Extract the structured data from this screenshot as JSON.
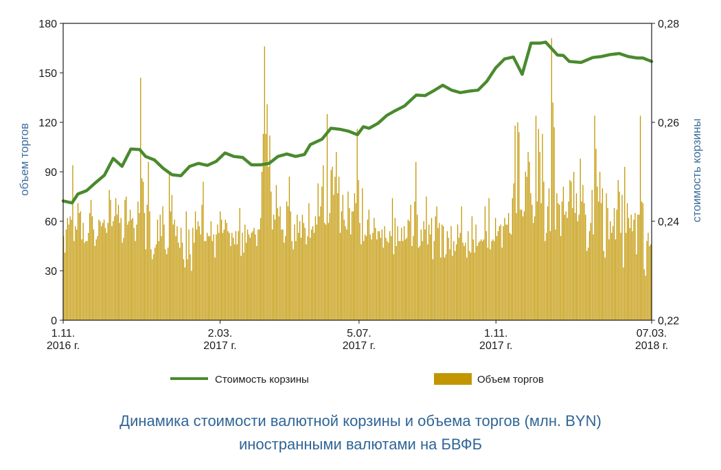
{
  "caption": {
    "line1": "Динамика стоимости валютной корзины и объема торгов (млн. BYN)",
    "line2": "иностранными валютами на БВФБ"
  },
  "colors": {
    "line": "#4a8a2e",
    "bars": "#c29600",
    "axis": "#1a1a1a",
    "title": "#2f6597"
  },
  "chart_data": {
    "type": "bar+line",
    "left_axis": {
      "label": "объем торгов",
      "ylim": [
        0,
        180
      ],
      "ticks": [
        "0",
        "30",
        "60",
        "90",
        "120",
        "150",
        "180"
      ]
    },
    "right_axis": {
      "label": "стоимость корзины",
      "ylim": [
        0.22,
        0.28
      ],
      "ticks": [
        "0,22",
        "0,24",
        "0,26",
        "0,28"
      ]
    },
    "x_ticks": [
      {
        "line1": "1.11.",
        "line2": "2016 г.",
        "pos": 0.0
      },
      {
        "line1": "2.03.",
        "line2": "2017 г.",
        "pos": 0.2666
      },
      {
        "line1": "5.07.",
        "line2": "2017 г.",
        "pos": 0.5028
      },
      {
        "line1": "1.11.",
        "line2": "2017 г.",
        "pos": 0.7354
      },
      {
        "line1": "07.03.",
        "line2": "2018 г.",
        "pos": 1.0
      }
    ],
    "series": [
      {
        "name": "Стоимость корзины",
        "type": "line",
        "axis": "right",
        "x": [
          0.0,
          0.015,
          0.025,
          0.04,
          0.055,
          0.07,
          0.085,
          0.1,
          0.115,
          0.13,
          0.14,
          0.155,
          0.17,
          0.185,
          0.2,
          0.215,
          0.23,
          0.245,
          0.26,
          0.275,
          0.29,
          0.305,
          0.32,
          0.335,
          0.35,
          0.365,
          0.38,
          0.395,
          0.41,
          0.42,
          0.44,
          0.455,
          0.47,
          0.485,
          0.5,
          0.51,
          0.52,
          0.535,
          0.55,
          0.565,
          0.58,
          0.6,
          0.615,
          0.63,
          0.645,
          0.66,
          0.675,
          0.69,
          0.705,
          0.72,
          0.735,
          0.75,
          0.765,
          0.78,
          0.795,
          0.81,
          0.82,
          0.83,
          0.84,
          0.85,
          0.86,
          0.87,
          0.88,
          0.9,
          0.915,
          0.93,
          0.945,
          0.96,
          0.975,
          0.985,
          1.0
        ],
        "values": [
          0.2441,
          0.2437,
          0.2455,
          0.2462,
          0.2478,
          0.2493,
          0.2527,
          0.2511,
          0.2546,
          0.2545,
          0.2531,
          0.2524,
          0.2507,
          0.2494,
          0.2492,
          0.2511,
          0.2517,
          0.2513,
          0.2521,
          0.2538,
          0.2531,
          0.2529,
          0.2514,
          0.2514,
          0.2517,
          0.2531,
          0.2536,
          0.2531,
          0.2535,
          0.2555,
          0.2566,
          0.2588,
          0.2586,
          0.2582,
          0.2575,
          0.2591,
          0.2588,
          0.2598,
          0.2614,
          0.2624,
          0.2633,
          0.2655,
          0.2654,
          0.2664,
          0.2675,
          0.2665,
          0.266,
          0.2663,
          0.2665,
          0.2683,
          0.271,
          0.2728,
          0.2732,
          0.2697,
          0.276,
          0.276,
          0.2762,
          0.2749,
          0.2736,
          0.2735,
          0.2723,
          0.2722,
          0.2721,
          0.2731,
          0.2733,
          0.2737,
          0.2739,
          0.2733,
          0.273,
          0.273,
          0.2723
        ]
      },
      {
        "name": "Объем торгов",
        "type": "bar",
        "axis": "left",
        "x_range": [
          0,
          1
        ],
        "values": [
          51,
          41,
          55,
          62,
          58,
          63,
          61,
          94,
          48,
          57,
          55,
          71,
          65,
          66,
          49,
          59,
          47,
          48,
          48,
          53,
          65,
          73,
          63,
          55,
          45,
          49,
          51,
          61,
          60,
          57,
          59,
          61,
          56,
          53,
          59,
          79,
          73,
          57,
          60,
          63,
          74,
          64,
          70,
          59,
          62,
          47,
          50,
          73,
          75,
          58,
          60,
          67,
          61,
          62,
          56,
          48,
          58,
          72,
          65,
          147,
          86,
          84,
          65,
          43,
          70,
          96,
          66,
          43,
          37,
          40,
          44,
          46,
          61,
          48,
          64,
          51,
          69,
          58,
          43,
          40,
          44,
          90,
          66,
          76,
          58,
          61,
          51,
          57,
          47,
          44,
          56,
          47,
          37,
          32,
          66,
          37,
          55,
          40,
          30,
          56,
          47,
          66,
          55,
          60,
          57,
          52,
          70,
          84,
          48,
          48,
          53,
          51,
          51,
          60,
          48,
          52,
          38,
          52,
          58,
          53,
          66,
          61,
          53,
          55,
          61,
          59,
          54,
          53,
          45,
          53,
          50,
          46,
          54,
          46,
          54,
          68,
          39,
          53,
          41,
          58,
          47,
          55,
          52,
          50,
          53,
          54,
          56,
          52,
          45,
          55,
          55,
          62,
          90,
          113,
          166,
          113,
          131,
          93,
          112,
          78,
          55,
          64,
          61,
          82,
          68,
          63,
          69,
          55,
          55,
          47,
          51,
          72,
          69,
          87,
          66,
          48,
          43,
          58,
          48,
          64,
          53,
          60,
          50,
          64,
          59,
          56,
          46,
          51,
          71,
          50,
          55,
          57,
          53,
          63,
          58,
          83,
          63,
          69,
          81,
          94,
          59,
          58,
          125,
          59,
          65,
          91,
          93,
          76,
          87,
          102,
          77,
          87,
          53,
          66,
          76,
          61,
          57,
          55,
          78,
          68,
          52,
          66,
          66,
          77,
          71,
          116,
          85,
          59,
          46,
          80,
          48,
          52,
          51,
          61,
          67,
          52,
          49,
          53,
          62,
          56,
          49,
          54,
          54,
          50,
          55,
          44,
          57,
          50,
          48,
          47,
          54,
          51,
          74,
          40,
          62,
          45,
          57,
          48,
          48,
          56,
          48,
          57,
          49,
          50,
          61,
          60,
          70,
          45,
          51,
          72,
          96,
          64,
          44,
          45,
          55,
          48,
          60,
          55,
          75,
          46,
          58,
          52,
          62,
          37,
          48,
          63,
          69,
          56,
          59,
          38,
          58,
          57,
          38,
          40,
          54,
          50,
          43,
          57,
          39,
          48,
          42,
          46,
          58,
          50,
          53,
          69,
          47,
          45,
          47,
          38,
          54,
          42,
          41,
          63,
          49,
          41,
          58,
          45,
          47,
          48,
          49,
          48,
          49,
          69,
          54,
          44,
          74,
          43,
          48,
          49,
          48,
          62,
          51,
          54,
          57,
          58,
          44,
          57,
          62,
          58,
          58,
          65,
          53,
          52,
          74,
          83,
          118,
          65,
          120,
          114,
          67,
          67,
          63,
          66,
          90,
          87,
          102,
          96,
          77,
          70,
          59,
          63,
          124,
          72,
          116,
          102,
          71,
          113,
          84,
          48,
          53,
          69,
          80,
          54,
          171,
          132,
          117,
          55,
          77,
          71,
          70,
          51,
          72,
          81,
          64,
          66,
          62,
          72,
          85,
          84,
          68,
          90,
          65,
          77,
          60,
          64,
          98,
          72,
          82,
          71,
          64,
          42,
          44,
          54,
          59,
          79,
          52,
          124,
          104,
          81,
          72,
          90,
          71,
          80,
          42,
          38,
          77,
          68,
          49,
          60,
          53,
          57,
          68,
          49,
          67,
          85,
          78,
          53,
          76,
          32,
          93,
          53,
          71,
          62,
          56,
          64,
          54,
          61,
          65,
          40,
          64,
          64,
          124,
          72,
          71,
          31,
          27,
          48,
          53,
          45,
          46
        ]
      }
    ],
    "legend": [
      "Стоимость корзины",
      "Объем торгов"
    ],
    "grid": false
  }
}
